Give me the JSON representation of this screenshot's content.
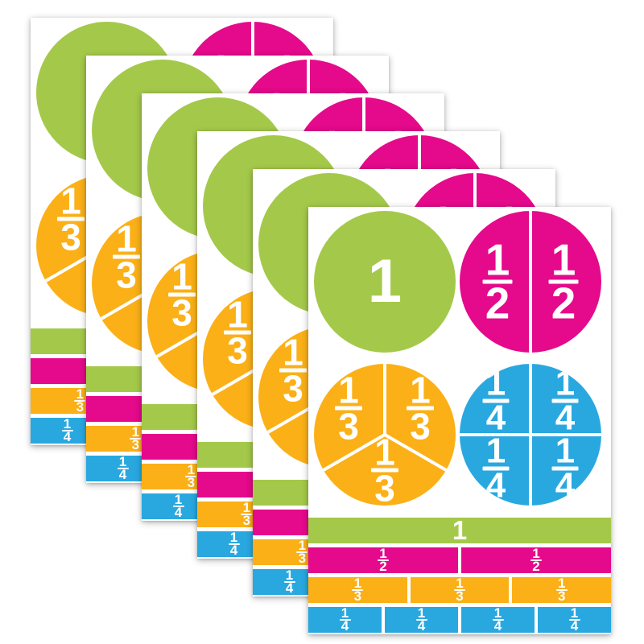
{
  "colors": {
    "whole": "#a4c94a",
    "half": "#e5098b",
    "third": "#fbb017",
    "fourth": "#29a8e0",
    "card_bg": "#ffffff",
    "label": "#ffffff"
  },
  "stack": {
    "sheet_count": 6
  },
  "card": {
    "circles": [
      {
        "type": "whole",
        "color": "whole",
        "label": "1"
      },
      {
        "type": "halves",
        "color": "half",
        "segments": [
          {
            "num": "1",
            "den": "2"
          },
          {
            "num": "1",
            "den": "2"
          }
        ]
      },
      {
        "type": "thirds",
        "color": "third",
        "segments": [
          {
            "num": "1",
            "den": "3"
          },
          {
            "num": "1",
            "den": "3"
          },
          {
            "num": "1",
            "den": "3"
          }
        ]
      },
      {
        "type": "fourths",
        "color": "fourth",
        "segments": [
          {
            "num": "1",
            "den": "4"
          },
          {
            "num": "1",
            "den": "4"
          },
          {
            "num": "1",
            "den": "4"
          },
          {
            "num": "1",
            "den": "4"
          }
        ]
      }
    ],
    "bars": [
      {
        "type": "whole",
        "color": "whole",
        "segments": [
          {
            "label": "1"
          }
        ]
      },
      {
        "type": "halves",
        "color": "half",
        "segments": [
          {
            "num": "1",
            "den": "2"
          },
          {
            "num": "1",
            "den": "2"
          }
        ]
      },
      {
        "type": "thirds",
        "color": "third",
        "segments": [
          {
            "num": "1",
            "den": "3"
          },
          {
            "num": "1",
            "den": "3"
          },
          {
            "num": "1",
            "den": "3"
          }
        ]
      },
      {
        "type": "fourths",
        "color": "fourth",
        "segments": [
          {
            "num": "1",
            "den": "4"
          },
          {
            "num": "1",
            "den": "4"
          },
          {
            "num": "1",
            "den": "4"
          },
          {
            "num": "1",
            "den": "4"
          }
        ]
      }
    ]
  }
}
